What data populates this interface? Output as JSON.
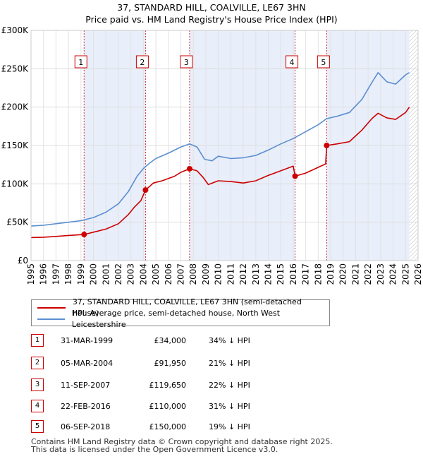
{
  "chart_data": {
    "type": "line",
    "title": "37, STANDARD HILL, COALVILLE, LE67 3HN",
    "subtitle": "Price paid vs. HM Land Registry's House Price Index (HPI)",
    "xlim": [
      1995,
      2026
    ],
    "ylim": [
      0,
      300000
    ],
    "x_ticks": [
      "1995",
      "1996",
      "1997",
      "1998",
      "1999",
      "2000",
      "2001",
      "2002",
      "2003",
      "2004",
      "2005",
      "2006",
      "2007",
      "2008",
      "2009",
      "2010",
      "2011",
      "2012",
      "2013",
      "2014",
      "2015",
      "2016",
      "2017",
      "2018",
      "2019",
      "2020",
      "2021",
      "2022",
      "2023",
      "2024",
      "2025",
      "2026"
    ],
    "y_ticks": [
      {
        "value": 0,
        "label": "£0"
      },
      {
        "value": 50000,
        "label": "£50K"
      },
      {
        "value": 100000,
        "label": "£100K"
      },
      {
        "value": 150000,
        "label": "£150K"
      },
      {
        "value": 200000,
        "label": "£200K"
      },
      {
        "value": 250000,
        "label": "£250K"
      },
      {
        "value": 300000,
        "label": "£300K"
      }
    ],
    "colors": {
      "price": "#cc0000",
      "hpi": "#5b8fd0",
      "shade": "#e8eefa",
      "future_hatch": "#c0c0c0",
      "vline": "#cc3333"
    },
    "shaded_periods": [
      [
        1999.25,
        2004.17
      ],
      [
        2007.7,
        2016.15
      ],
      [
        2018.68,
        2025.3
      ]
    ],
    "future_start": 2025.3,
    "series": [
      {
        "name": "37, STANDARD HILL, COALVILLE, LE67 3HN (semi-detached house)",
        "color": "#cc0000",
        "points": [
          [
            1995.0,
            30000
          ],
          [
            1996.0,
            30500
          ],
          [
            1997.0,
            31500
          ],
          [
            1998.0,
            32800
          ],
          [
            1999.25,
            34000
          ],
          [
            2000.0,
            37000
          ],
          [
            2001.0,
            41000
          ],
          [
            2002.0,
            48000
          ],
          [
            2002.8,
            60000
          ],
          [
            2003.3,
            70000
          ],
          [
            2003.8,
            78000
          ],
          [
            2004.17,
            91950
          ],
          [
            2004.8,
            101000
          ],
          [
            2005.5,
            104000
          ],
          [
            2006.5,
            110000
          ],
          [
            2007.0,
            115000
          ],
          [
            2007.7,
            119650
          ],
          [
            2008.3,
            117000
          ],
          [
            2008.8,
            108000
          ],
          [
            2009.2,
            99000
          ],
          [
            2010.0,
            104000
          ],
          [
            2011.0,
            103000
          ],
          [
            2012.0,
            101000
          ],
          [
            2013.0,
            104000
          ],
          [
            2014.0,
            111000
          ],
          [
            2015.0,
            117000
          ],
          [
            2016.0,
            123000
          ],
          [
            2016.15,
            110000
          ],
          [
            2017.0,
            114000
          ],
          [
            2017.8,
            120000
          ],
          [
            2018.6,
            126000
          ],
          [
            2018.68,
            150000
          ],
          [
            2019.5,
            152000
          ],
          [
            2020.5,
            155000
          ],
          [
            2021.5,
            170000
          ],
          [
            2022.3,
            185000
          ],
          [
            2022.8,
            192000
          ],
          [
            2023.5,
            186000
          ],
          [
            2024.2,
            184000
          ],
          [
            2025.0,
            193000
          ],
          [
            2025.3,
            200000
          ]
        ]
      },
      {
        "name": "HPI: Average price, semi-detached house, North West Leicestershire",
        "color": "#5b8fd0",
        "points": [
          [
            1995.0,
            45000
          ],
          [
            1996.0,
            46000
          ],
          [
            1997.0,
            48000
          ],
          [
            1998.0,
            50000
          ],
          [
            1999.0,
            52000
          ],
          [
            2000.0,
            56000
          ],
          [
            2001.0,
            63000
          ],
          [
            2002.0,
            74000
          ],
          [
            2002.8,
            90000
          ],
          [
            2003.5,
            110000
          ],
          [
            2004.0,
            120000
          ],
          [
            2004.5,
            127000
          ],
          [
            2005.0,
            133000
          ],
          [
            2006.0,
            140000
          ],
          [
            2007.0,
            148000
          ],
          [
            2007.7,
            152000
          ],
          [
            2008.3,
            148000
          ],
          [
            2008.9,
            132000
          ],
          [
            2009.5,
            130000
          ],
          [
            2010.0,
            136000
          ],
          [
            2011.0,
            133000
          ],
          [
            2012.0,
            134000
          ],
          [
            2013.0,
            137000
          ],
          [
            2014.0,
            144000
          ],
          [
            2015.0,
            152000
          ],
          [
            2016.0,
            159000
          ],
          [
            2017.0,
            168000
          ],
          [
            2018.0,
            177000
          ],
          [
            2018.68,
            185000
          ],
          [
            2019.5,
            188000
          ],
          [
            2020.5,
            193000
          ],
          [
            2021.5,
            210000
          ],
          [
            2022.3,
            232000
          ],
          [
            2022.8,
            245000
          ],
          [
            2023.5,
            233000
          ],
          [
            2024.2,
            230000
          ],
          [
            2025.0,
            242000
          ],
          [
            2025.3,
            245000
          ]
        ]
      }
    ],
    "sales": [
      {
        "n": "1",
        "x": 1999.25,
        "price": 34000
      },
      {
        "n": "2",
        "x": 2004.17,
        "price": 91950
      },
      {
        "n": "3",
        "x": 2007.7,
        "price": 119650
      },
      {
        "n": "4",
        "x": 2016.15,
        "price": 110000
      },
      {
        "n": "5",
        "x": 2018.68,
        "price": 150000
      }
    ]
  },
  "legend": {
    "price_label": "37, STANDARD HILL, COALVILLE, LE67 3HN (semi-detached house)",
    "hpi_label": "HPI: Average price, semi-detached house, North West Leicestershire"
  },
  "table": [
    {
      "n": "1",
      "date": "31-MAR-1999",
      "price": "£34,000",
      "hpi": "34% ↓ HPI"
    },
    {
      "n": "2",
      "date": "05-MAR-2004",
      "price": "£91,950",
      "hpi": "21% ↓ HPI"
    },
    {
      "n": "3",
      "date": "11-SEP-2007",
      "price": "£119,650",
      "hpi": "22% ↓ HPI"
    },
    {
      "n": "4",
      "date": "22-FEB-2016",
      "price": "£110,000",
      "hpi": "31% ↓ HPI"
    },
    {
      "n": "5",
      "date": "06-SEP-2018",
      "price": "£150,000",
      "hpi": "19% ↓ HPI"
    }
  ],
  "footer": {
    "line1": "Contains HM Land Registry data © Crown copyright and database right 2025.",
    "line2": "This data is licensed under the Open Government Licence v3.0."
  }
}
